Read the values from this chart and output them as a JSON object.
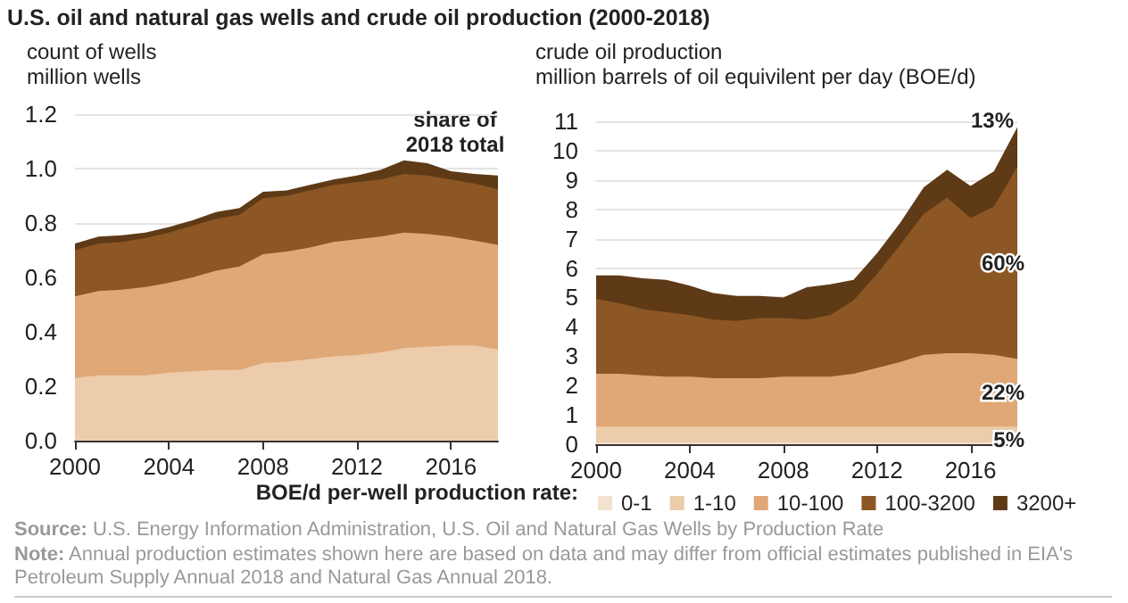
{
  "chart_data": [
    {
      "type": "area",
      "title": "U.S. oil and natural gas wells and crude oil production (2000-2018)",
      "subtitle": "count of wells",
      "ylabel": "million wells",
      "x": [
        2000,
        2001,
        2002,
        2003,
        2004,
        2005,
        2006,
        2007,
        2008,
        2009,
        2010,
        2011,
        2012,
        2013,
        2014,
        2015,
        2016,
        2017,
        2018
      ],
      "stacked": true,
      "series": [
        {
          "color": "#ecccaa",
          "values": [
            0.23,
            0.24,
            0.24,
            0.24,
            0.25,
            0.255,
            0.26,
            0.26,
            0.285,
            0.29,
            0.3,
            0.31,
            0.315,
            0.325,
            0.34,
            0.345,
            0.35,
            0.35,
            0.335
          ]
        },
        {
          "color": "#e0a877",
          "values": [
            0.3,
            0.31,
            0.315,
            0.325,
            0.33,
            0.345,
            0.365,
            0.38,
            0.4,
            0.405,
            0.41,
            0.42,
            0.425,
            0.425,
            0.425,
            0.415,
            0.4,
            0.385,
            0.385
          ]
        },
        {
          "color": "#8c5724",
          "values": [
            0.17,
            0.175,
            0.175,
            0.18,
            0.185,
            0.19,
            0.19,
            0.19,
            0.205,
            0.205,
            0.21,
            0.21,
            0.21,
            0.21,
            0.215,
            0.215,
            0.21,
            0.21,
            0.205
          ]
        },
        {
          "color": "#5e3a17",
          "values": [
            0.025,
            0.025,
            0.025,
            0.02,
            0.02,
            0.02,
            0.025,
            0.025,
            0.025,
            0.02,
            0.02,
            0.02,
            0.025,
            0.035,
            0.05,
            0.045,
            0.03,
            0.035,
            0.05
          ]
        }
      ],
      "xlim": [
        2000,
        2018
      ],
      "xticks": [
        2000,
        2004,
        2008,
        2012,
        2016
      ],
      "ylim": [
        0,
        1.2
      ],
      "yticks": [
        {
          "value": 0,
          "label": "0.0"
        },
        {
          "value": 0.2,
          "label": "0.2"
        },
        {
          "value": 0.4,
          "label": "0.4"
        },
        {
          "value": 0.6,
          "label": "0.6"
        },
        {
          "value": 0.8,
          "label": "0.8"
        },
        {
          "value": 1,
          "label": "1.0"
        },
        {
          "value": 1.2,
          "label": "1.2"
        }
      ],
      "grid": "y",
      "legend": false,
      "annotations": [
        "Source: U.S. Energy Information Administration, U.S. Oil and Natural Gas Wells by Production Rate",
        "Note: Annual production estimates shown here are based on data and may differ from official estimates published in EIA's Petroleum Supply Annual 2018 and Natural Gas Annual 2018."
      ]
    },
    {
      "type": "area",
      "subtitle": "crude oil production",
      "ylabel": "million barrels of oil equivilent per day (BOE/d)",
      "legend_title": "BOE/d per-well production rate:",
      "x": [
        2000,
        2001,
        2002,
        2003,
        2004,
        2005,
        2006,
        2007,
        2008,
        2009,
        2010,
        2011,
        2012,
        2013,
        2014,
        2015,
        2016,
        2017,
        2018
      ],
      "stacked": true,
      "series": [
        {
          "name": "0-1",
          "color": "#f3e2d0",
          "values": [
            0.05,
            0.05,
            0.05,
            0.05,
            0.05,
            0.05,
            0.05,
            0.05,
            0.05,
            0.05,
            0.05,
            0.05,
            0.05,
            0.05,
            0.05,
            0.05,
            0.05,
            0.05,
            0.05
          ]
        },
        {
          "name": "1-10",
          "color": "#ecccaa",
          "values": [
            0.55,
            0.55,
            0.55,
            0.55,
            0.55,
            0.55,
            0.55,
            0.55,
            0.55,
            0.55,
            0.55,
            0.55,
            0.55,
            0.55,
            0.55,
            0.55,
            0.55,
            0.55,
            0.55
          ]
        },
        {
          "name": "10-100",
          "color": "#e0a877",
          "values": [
            1.8,
            1.8,
            1.75,
            1.7,
            1.7,
            1.65,
            1.65,
            1.65,
            1.7,
            1.7,
            1.7,
            1.8,
            2.0,
            2.2,
            2.45,
            2.5,
            2.5,
            2.45,
            2.3
          ]
        },
        {
          "name": "100-3200",
          "color": "#8c5724",
          "values": [
            2.55,
            2.4,
            2.25,
            2.2,
            2.1,
            2.0,
            1.95,
            2.05,
            2.0,
            1.95,
            2.1,
            2.5,
            3.2,
            4.0,
            4.8,
            5.3,
            4.6,
            5.05,
            6.55
          ]
        },
        {
          "name": "3200+",
          "color": "#5e3a17",
          "values": [
            0.8,
            0.95,
            1.05,
            1.1,
            1.0,
            0.9,
            0.85,
            0.75,
            0.7,
            1.1,
            1.05,
            0.7,
            0.7,
            0.75,
            0.9,
            0.95,
            1.1,
            1.2,
            1.35
          ]
        }
      ],
      "xlim": [
        2000,
        2018
      ],
      "xticks": [
        2000,
        2004,
        2008,
        2012,
        2016
      ],
      "ylim": [
        0,
        11
      ],
      "yticks": [
        0,
        1,
        2,
        3,
        4,
        5,
        6,
        7,
        8,
        9,
        10,
        11
      ],
      "grid": "y",
      "legend": "bottom",
      "annotations": [
        "share of 2018 total",
        "13%",
        "60%",
        "22%",
        "5%"
      ]
    }
  ]
}
